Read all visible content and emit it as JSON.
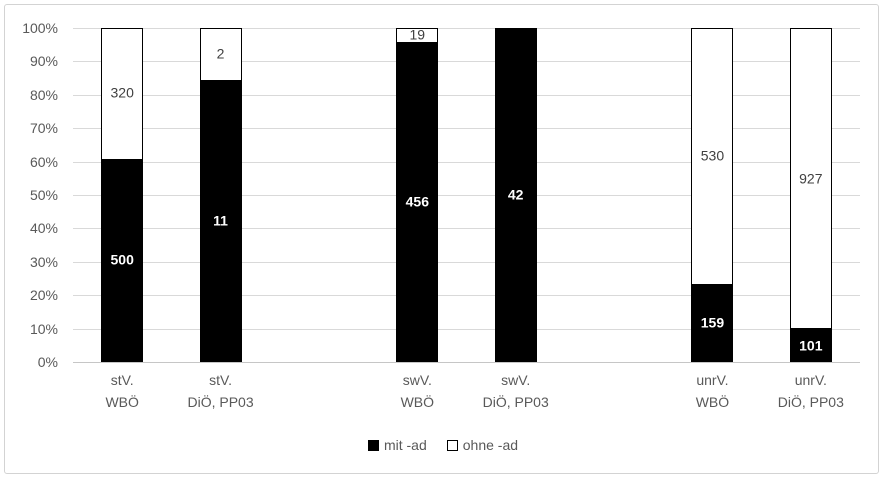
{
  "chart_data": {
    "type": "bar",
    "variant": "100%-stacked-column",
    "title": "",
    "xlabel": "",
    "ylabel": "",
    "categories": [
      {
        "line1": "stV.",
        "line2": "WBÖ"
      },
      {
        "line1": "stV.",
        "line2": "DiÖ, PP03"
      },
      {
        "line1": "swV.",
        "line2": "WBÖ"
      },
      {
        "line1": "swV.",
        "line2": "DiÖ, PP03"
      },
      {
        "line1": "unrV.",
        "line2": "WBÖ"
      },
      {
        "line1": "unrV.",
        "line2": "DiÖ, PP03"
      }
    ],
    "series": [
      {
        "name": "mit -ad",
        "fill": "#000000",
        "label_color": "#ffffff",
        "values": [
          500,
          11,
          456,
          42,
          159,
          101
        ]
      },
      {
        "name": "ohne -ad",
        "fill": "#ffffff",
        "label_color": "#404040",
        "values": [
          320,
          2,
          19,
          0,
          530,
          927
        ]
      }
    ],
    "y_ticks": [
      "0%",
      "10%",
      "20%",
      "30%",
      "40%",
      "50%",
      "60%",
      "70%",
      "80%",
      "90%",
      "100%"
    ],
    "ylim": [
      0,
      100
    ],
    "grid": true,
    "legend_position": "bottom",
    "layout_hint": {
      "total_slots": 8,
      "bar_slots": [
        0,
        1,
        3,
        4,
        6,
        7
      ]
    }
  },
  "colors": {
    "axis_text": "#595959",
    "gridline": "#d9d9d9",
    "axis_line": "#c6c6c6",
    "bar_border": "#000000",
    "frame_border": "#d3d3d3",
    "background": "#ffffff"
  }
}
